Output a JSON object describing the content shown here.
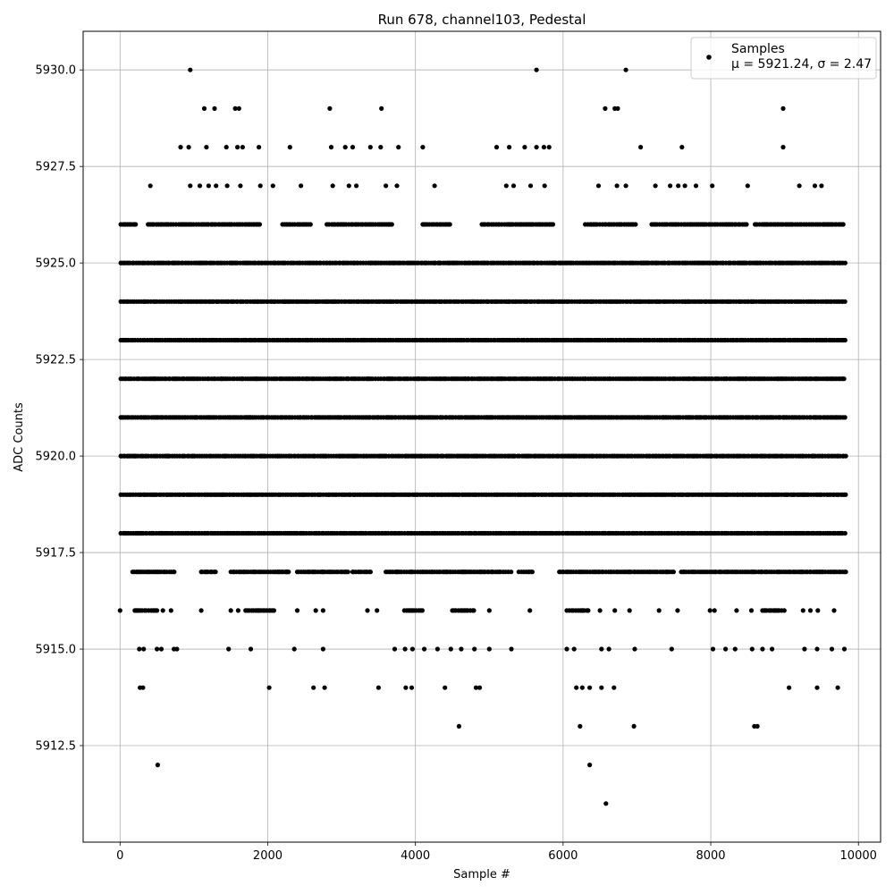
{
  "chart_data": {
    "type": "scatter",
    "title": "Run 678, channel103, Pedestal",
    "xlabel": "Sample #",
    "ylabel": "ADC Counts",
    "xlim": [
      -500,
      10300
    ],
    "ylim": [
      5910.0,
      5931.0
    ],
    "x_ticks": [
      0,
      2000,
      4000,
      6000,
      8000,
      10000
    ],
    "y_ticks": [
      5912.5,
      5915.0,
      5917.5,
      5920.0,
      5922.5,
      5925.0,
      5927.5,
      5930.0
    ],
    "x_tick_labels": [
      "0",
      "2000",
      "4000",
      "6000",
      "8000",
      "10000"
    ],
    "y_tick_labels": [
      "5912.5",
      "5915.0",
      "5917.5",
      "5920.0",
      "5922.5",
      "5925.0",
      "5927.5",
      "5930.0"
    ],
    "grid": true,
    "marker_color": "#000000",
    "legend_position": "top-right",
    "series": [
      {
        "name": "Samples",
        "stats_label": "μ = 5921.24, σ = 2.47",
        "mean": 5921.24,
        "sigma": 2.47,
        "dense_levels": [
          {
            "y": 5918,
            "ranges": [
              [
                10,
                9830
              ]
            ]
          },
          {
            "y": 5919,
            "ranges": [
              [
                10,
                9830
              ]
            ]
          },
          {
            "y": 5920,
            "ranges": [
              [
                10,
                9830
              ]
            ]
          },
          {
            "y": 5921,
            "ranges": [
              [
                10,
                9830
              ]
            ]
          },
          {
            "y": 5922,
            "ranges": [
              [
                10,
                9830
              ]
            ]
          },
          {
            "y": 5923,
            "ranges": [
              [
                10,
                9830
              ]
            ]
          },
          {
            "y": 5924,
            "ranges": [
              [
                10,
                9830
              ]
            ]
          },
          {
            "y": 5925,
            "ranges": [
              [
                10,
                9830
              ]
            ]
          },
          {
            "y": 5926,
            "ranges": [
              [
                10,
                220
              ],
              [
                380,
                1900
              ],
              [
                2200,
                2600
              ],
              [
                2800,
                3700
              ],
              [
                4100,
                4500
              ],
              [
                4900,
                5900
              ],
              [
                6300,
                7000
              ],
              [
                7200,
                8500
              ],
              [
                8600,
                9800
              ]
            ]
          },
          {
            "y": 5917,
            "ranges": [
              [
                170,
                750
              ],
              [
                1100,
                1300
              ],
              [
                1500,
                2300
              ],
              [
                2400,
                3100
              ],
              [
                3150,
                3400
              ],
              [
                3600,
                5300
              ],
              [
                5400,
                5600
              ],
              [
                5950,
                7500
              ],
              [
                7600,
                9830
              ]
            ]
          },
          {
            "y": 5916,
            "ranges": [
              [
                200,
                500
              ],
              [
                1700,
                2100
              ],
              [
                3850,
                4100
              ],
              [
                4500,
                4800
              ],
              [
                6050,
                6350
              ],
              [
                8700,
                9000
              ]
            ]
          }
        ],
        "points": [
          {
            "x": 0,
            "y": 5916
          },
          {
            "x": 510,
            "y": 5912
          },
          {
            "x": 260,
            "y": 5915
          },
          {
            "x": 320,
            "y": 5915
          },
          {
            "x": 500,
            "y": 5915
          },
          {
            "x": 560,
            "y": 5915
          },
          {
            "x": 730,
            "y": 5915
          },
          {
            "x": 770,
            "y": 5915
          },
          {
            "x": 270,
            "y": 5914
          },
          {
            "x": 310,
            "y": 5914
          },
          {
            "x": 450,
            "y": 5916
          },
          {
            "x": 580,
            "y": 5916
          },
          {
            "x": 690,
            "y": 5916
          },
          {
            "x": 1100,
            "y": 5916
          },
          {
            "x": 1500,
            "y": 5916
          },
          {
            "x": 1600,
            "y": 5916
          },
          {
            "x": 2400,
            "y": 5916
          },
          {
            "x": 2650,
            "y": 5916
          },
          {
            "x": 2750,
            "y": 5916
          },
          {
            "x": 3350,
            "y": 5916
          },
          {
            "x": 3480,
            "y": 5916
          },
          {
            "x": 5000,
            "y": 5916
          },
          {
            "x": 5550,
            "y": 5916
          },
          {
            "x": 6500,
            "y": 5916
          },
          {
            "x": 6700,
            "y": 5916
          },
          {
            "x": 6900,
            "y": 5916
          },
          {
            "x": 7300,
            "y": 5916
          },
          {
            "x": 7550,
            "y": 5916
          },
          {
            "x": 7990,
            "y": 5916
          },
          {
            "x": 8050,
            "y": 5916
          },
          {
            "x": 8350,
            "y": 5916
          },
          {
            "x": 8550,
            "y": 5916
          },
          {
            "x": 9250,
            "y": 5916
          },
          {
            "x": 9350,
            "y": 5916
          },
          {
            "x": 9450,
            "y": 5916
          },
          {
            "x": 9670,
            "y": 5916
          },
          {
            "x": 1470,
            "y": 5915
          },
          {
            "x": 1770,
            "y": 5915
          },
          {
            "x": 2360,
            "y": 5915
          },
          {
            "x": 2750,
            "y": 5915
          },
          {
            "x": 3720,
            "y": 5915
          },
          {
            "x": 3860,
            "y": 5915
          },
          {
            "x": 3960,
            "y": 5915
          },
          {
            "x": 4120,
            "y": 5915
          },
          {
            "x": 4300,
            "y": 5915
          },
          {
            "x": 4480,
            "y": 5915
          },
          {
            "x": 4620,
            "y": 5915
          },
          {
            "x": 4800,
            "y": 5915
          },
          {
            "x": 5000,
            "y": 5915
          },
          {
            "x": 5300,
            "y": 5915
          },
          {
            "x": 6050,
            "y": 5915
          },
          {
            "x": 6150,
            "y": 5915
          },
          {
            "x": 6520,
            "y": 5915
          },
          {
            "x": 6620,
            "y": 5915
          },
          {
            "x": 6970,
            "y": 5915
          },
          {
            "x": 7470,
            "y": 5915
          },
          {
            "x": 8030,
            "y": 5915
          },
          {
            "x": 8200,
            "y": 5915
          },
          {
            "x": 8330,
            "y": 5915
          },
          {
            "x": 8560,
            "y": 5915
          },
          {
            "x": 8700,
            "y": 5915
          },
          {
            "x": 8830,
            "y": 5915
          },
          {
            "x": 9270,
            "y": 5915
          },
          {
            "x": 9440,
            "y": 5915
          },
          {
            "x": 9640,
            "y": 5915
          },
          {
            "x": 9810,
            "y": 5915
          },
          {
            "x": 2020,
            "y": 5914
          },
          {
            "x": 2620,
            "y": 5914
          },
          {
            "x": 2770,
            "y": 5914
          },
          {
            "x": 3500,
            "y": 5914
          },
          {
            "x": 3870,
            "y": 5914
          },
          {
            "x": 3950,
            "y": 5914
          },
          {
            "x": 4400,
            "y": 5914
          },
          {
            "x": 4820,
            "y": 5914
          },
          {
            "x": 4870,
            "y": 5914
          },
          {
            "x": 6180,
            "y": 5914
          },
          {
            "x": 6260,
            "y": 5914
          },
          {
            "x": 6360,
            "y": 5914
          },
          {
            "x": 6520,
            "y": 5914
          },
          {
            "x": 6690,
            "y": 5914
          },
          {
            "x": 9060,
            "y": 5914
          },
          {
            "x": 9440,
            "y": 5914
          },
          {
            "x": 9720,
            "y": 5914
          },
          {
            "x": 4590,
            "y": 5913
          },
          {
            "x": 6230,
            "y": 5913
          },
          {
            "x": 6960,
            "y": 5913
          },
          {
            "x": 8590,
            "y": 5913
          },
          {
            "x": 8630,
            "y": 5913
          },
          {
            "x": 6360,
            "y": 5912
          },
          {
            "x": 6580,
            "y": 5911
          },
          {
            "x": 410,
            "y": 5927
          },
          {
            "x": 950,
            "y": 5927
          },
          {
            "x": 1080,
            "y": 5927
          },
          {
            "x": 1200,
            "y": 5927
          },
          {
            "x": 1300,
            "y": 5927
          },
          {
            "x": 1450,
            "y": 5927
          },
          {
            "x": 1630,
            "y": 5927
          },
          {
            "x": 1900,
            "y": 5927
          },
          {
            "x": 2070,
            "y": 5927
          },
          {
            "x": 2450,
            "y": 5927
          },
          {
            "x": 2880,
            "y": 5927
          },
          {
            "x": 3100,
            "y": 5927
          },
          {
            "x": 3200,
            "y": 5927
          },
          {
            "x": 3600,
            "y": 5927
          },
          {
            "x": 3750,
            "y": 5927
          },
          {
            "x": 4260,
            "y": 5927
          },
          {
            "x": 5230,
            "y": 5927
          },
          {
            "x": 5330,
            "y": 5927
          },
          {
            "x": 5560,
            "y": 5927
          },
          {
            "x": 5750,
            "y": 5927
          },
          {
            "x": 6480,
            "y": 5927
          },
          {
            "x": 6730,
            "y": 5927
          },
          {
            "x": 6850,
            "y": 5927
          },
          {
            "x": 7250,
            "y": 5927
          },
          {
            "x": 7450,
            "y": 5927
          },
          {
            "x": 7560,
            "y": 5927
          },
          {
            "x": 7650,
            "y": 5927
          },
          {
            "x": 7800,
            "y": 5927
          },
          {
            "x": 8020,
            "y": 5927
          },
          {
            "x": 8500,
            "y": 5927
          },
          {
            "x": 9200,
            "y": 5927
          },
          {
            "x": 9410,
            "y": 5927
          },
          {
            "x": 9500,
            "y": 5927
          },
          {
            "x": 820,
            "y": 5928
          },
          {
            "x": 930,
            "y": 5928
          },
          {
            "x": 1170,
            "y": 5928
          },
          {
            "x": 1440,
            "y": 5928
          },
          {
            "x": 1590,
            "y": 5928
          },
          {
            "x": 1660,
            "y": 5928
          },
          {
            "x": 1880,
            "y": 5928
          },
          {
            "x": 2300,
            "y": 5928
          },
          {
            "x": 2860,
            "y": 5928
          },
          {
            "x": 3050,
            "y": 5928
          },
          {
            "x": 3150,
            "y": 5928
          },
          {
            "x": 3390,
            "y": 5928
          },
          {
            "x": 3530,
            "y": 5928
          },
          {
            "x": 3770,
            "y": 5928
          },
          {
            "x": 4100,
            "y": 5928
          },
          {
            "x": 5100,
            "y": 5928
          },
          {
            "x": 5270,
            "y": 5928
          },
          {
            "x": 5480,
            "y": 5928
          },
          {
            "x": 5640,
            "y": 5928
          },
          {
            "x": 5740,
            "y": 5928
          },
          {
            "x": 5810,
            "y": 5928
          },
          {
            "x": 7050,
            "y": 5928
          },
          {
            "x": 7610,
            "y": 5928
          },
          {
            "x": 8980,
            "y": 5928
          },
          {
            "x": 1140,
            "y": 5929
          },
          {
            "x": 1280,
            "y": 5929
          },
          {
            "x": 1560,
            "y": 5929
          },
          {
            "x": 1610,
            "y": 5929
          },
          {
            "x": 2840,
            "y": 5929
          },
          {
            "x": 3540,
            "y": 5929
          },
          {
            "x": 6570,
            "y": 5929
          },
          {
            "x": 6700,
            "y": 5929
          },
          {
            "x": 6740,
            "y": 5929
          },
          {
            "x": 8980,
            "y": 5929
          },
          {
            "x": 950,
            "y": 5930
          },
          {
            "x": 5640,
            "y": 5930
          },
          {
            "x": 6850,
            "y": 5930
          }
        ]
      }
    ]
  }
}
